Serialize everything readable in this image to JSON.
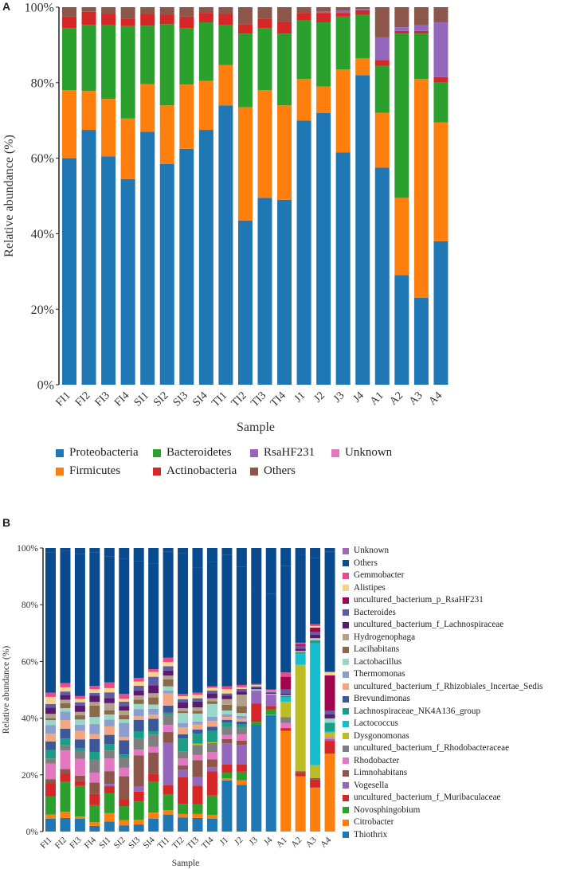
{
  "chart_data": [
    {
      "panel": "A",
      "type": "bar",
      "stacked": true,
      "title": "",
      "xlabel": "Sample",
      "ylabel": "Relative abundance (%)",
      "ylim": [
        0,
        100
      ],
      "yticks": [
        "0%",
        "20%",
        "40%",
        "60%",
        "80%",
        "100%"
      ],
      "legend_position": "bottom",
      "categories": [
        "FI1",
        "FI2",
        "FI3",
        "FI4",
        "SI1",
        "SI2",
        "SI3",
        "SI4",
        "TI1",
        "TI2",
        "TI3",
        "TI4",
        "J1",
        "J2",
        "J3",
        "J4",
        "A1",
        "A2",
        "A3",
        "A4"
      ],
      "series": [
        {
          "name": "Proteobacteria",
          "color": "#1f77b4",
          "values": [
            60,
            67.5,
            60.5,
            54.5,
            67,
            58.5,
            62.5,
            67.5,
            74,
            43.5,
            49.5,
            49,
            70,
            72,
            61.5,
            82,
            57.5,
            29,
            23,
            38
          ]
        },
        {
          "name": "Firmicutes",
          "color": "#ff7f0e",
          "values": [
            18,
            10.3,
            15.2,
            16,
            12.6,
            15.5,
            17,
            13,
            10.7,
            30,
            28.5,
            25,
            11,
            7,
            22,
            4.5,
            14.5,
            20.5,
            58,
            31.5
          ]
        },
        {
          "name": "Bacteroidetes",
          "color": "#2ca02c",
          "values": [
            16.5,
            17.5,
            19.5,
            24.5,
            15.5,
            21.5,
            15,
            15.5,
            10.5,
            19.5,
            16.5,
            19,
            15.5,
            17,
            14,
            11.5,
            12.5,
            43.5,
            12,
            10.5
          ]
        },
        {
          "name": "Actinobacteria",
          "color": "#d62728",
          "values": [
            3,
            3.5,
            3,
            2,
            3,
            2.5,
            3,
            2.5,
            3,
            2.5,
            2.5,
            3,
            2,
            2.5,
            1,
            1.2,
            1.5,
            0.7,
            0.7,
            1.5
          ]
        },
        {
          "name": "RsaHF231",
          "color": "#9467bd",
          "values": [
            0,
            0,
            0,
            0,
            0,
            0,
            0,
            0,
            0,
            0,
            0,
            0,
            0,
            0.3,
            0.5,
            0.3,
            6,
            1,
            1.5,
            14.5
          ]
        },
        {
          "name": "Unknown",
          "color": "#e377c2",
          "values": [
            0,
            0,
            0,
            0,
            0,
            0,
            0,
            0,
            0,
            0,
            0,
            0,
            0,
            0,
            0,
            0,
            0,
            0,
            0,
            0
          ]
        },
        {
          "name": "Others",
          "color": "#8c564b",
          "values": [
            2.5,
            1.2,
            1.8,
            3,
            1.9,
            2,
            2.5,
            1.5,
            1.8,
            4.5,
            3,
            4,
            1.5,
            1.2,
            1,
            0.5,
            8,
            5.3,
            4.8,
            4
          ]
        }
      ]
    },
    {
      "panel": "B",
      "type": "bar",
      "stacked": true,
      "title": "",
      "xlabel": "Sample",
      "ylabel": "Relative abundance (%)",
      "ylim": [
        0,
        100
      ],
      "yticks": [
        "0%",
        "20%",
        "40%",
        "60%",
        "80%",
        "100%"
      ],
      "legend_position": "right",
      "categories": [
        "FI1",
        "FI2",
        "FI3",
        "FI4",
        "SI1",
        "SI2",
        "SI3",
        "SI4",
        "TI1",
        "TI2",
        "TI3",
        "TI4",
        "J1",
        "J2",
        "J3",
        "J4",
        "A1",
        "A2",
        "A3",
        "A4"
      ],
      "series": [
        {
          "name": "Thiothrix",
          "color": "#1f77b4",
          "values": [
            4.5,
            4.8,
            4.5,
            2,
            3.5,
            2.2,
            2.5,
            4.5,
            6,
            5,
            4.8,
            4.5,
            18,
            16.5,
            37.5,
            41,
            0,
            0,
            0,
            0
          ]
        },
        {
          "name": "Citrobacter",
          "color": "#ff7f0e",
          "values": [
            1.5,
            2.2,
            0.8,
            1.3,
            3,
            1.8,
            1.6,
            2.2,
            1.5,
            1.2,
            1.4,
            1.4,
            0.8,
            1.6,
            0,
            0.3,
            35.5,
            19.5,
            15.5,
            27.5
          ]
        },
        {
          "name": "Novosphingobium",
          "color": "#2ca02c",
          "values": [
            6.5,
            10.5,
            10.8,
            6,
            7,
            5,
            6.5,
            11,
            5.5,
            3.6,
            3.5,
            6.8,
            2,
            3,
            1.2,
            1.8,
            0,
            0,
            0,
            0
          ]
        },
        {
          "name": "uncultured_bacterium_f_Muribaculaceae",
          "color": "#d62728",
          "values": [
            4.5,
            3,
            1.8,
            4,
            2.5,
            2.5,
            3.5,
            2.7,
            3.3,
            9.5,
            6.5,
            8.5,
            2.8,
            2.5,
            6.5,
            1.2,
            1,
            1.2,
            2.8,
            4.5
          ]
        },
        {
          "name": "Vogesella",
          "color": "#9467bd",
          "values": [
            0,
            0,
            0,
            0,
            0.8,
            0,
            1.8,
            0,
            15,
            2.5,
            3,
            1.5,
            7.5,
            7,
            4.5,
            4,
            0,
            0,
            0,
            0.6
          ]
        },
        {
          "name": "Limnohabitans",
          "color": "#8c564b",
          "values": [
            1.5,
            1.6,
            1.8,
            4,
            4.5,
            8,
            11,
            7.5,
            3.8,
            1.5,
            6,
            2.8,
            1.5,
            1.5,
            0,
            0,
            0,
            0.6,
            0.6,
            0
          ]
        },
        {
          "name": "Rhodobacter",
          "color": "#e377c2",
          "values": [
            5.5,
            6.5,
            6,
            3.5,
            4.5,
            3,
            2,
            2,
            2.5,
            2.5,
            1.8,
            2.5,
            1.5,
            2.2,
            0,
            0,
            1.8,
            0,
            0,
            0.8
          ]
        },
        {
          "name": "uncultured_bacterium_f_Rhodobacteraceae",
          "color": "#7f7f7f",
          "values": [
            1.8,
            2,
            2.8,
            4.5,
            2.8,
            3.5,
            4,
            4.3,
            3.5,
            2.5,
            3.5,
            3.2,
            2.8,
            2.5,
            0,
            0,
            2,
            0,
            0,
            0
          ]
        },
        {
          "name": "Dysgonomonas",
          "color": "#bcbd22",
          "values": [
            0,
            0,
            0,
            0,
            0,
            0,
            0,
            0,
            0,
            0,
            0.5,
            0.3,
            0,
            0,
            0,
            0,
            5.5,
            37.5,
            4.5,
            1.5
          ]
        },
        {
          "name": "Lactococcus",
          "color": "#17becf",
          "values": [
            0,
            0,
            0,
            0,
            0,
            0,
            0,
            0,
            0,
            0,
            0,
            0,
            0,
            0,
            0,
            0,
            1.5,
            4,
            43,
            0.5
          ]
        },
        {
          "name": "Lachnospiraceae_NK4A136_group",
          "color": "#1a9e85",
          "values": [
            3,
            2.2,
            1,
            2.8,
            2.2,
            1.2,
            2.5,
            1.2,
            0.8,
            4.5,
            3.5,
            4,
            1.5,
            1,
            0,
            0,
            0.5,
            0.5,
            1,
            3
          ]
        },
        {
          "name": "Brevundimonas",
          "color": "#3b5998",
          "values": [
            3,
            3.5,
            3,
            4.5,
            3.3,
            5,
            4,
            4.4,
            2.5,
            1.5,
            1.5,
            1.5,
            1,
            1,
            0,
            0,
            0,
            0,
            0,
            0
          ]
        },
        {
          "name": "uncultured_bacterium_f_Rhizobiales_Incertae_Sedis",
          "color": "#f4a582",
          "values": [
            2.7,
            3,
            3,
            1.8,
            3,
            1.2,
            1.3,
            1.5,
            4.3,
            2.5,
            1.8,
            2,
            1,
            1,
            0,
            0,
            0.3,
            0.4,
            0.4,
            0
          ]
        },
        {
          "name": "Thermomonas",
          "color": "#8c9ecb",
          "values": [
            3,
            3,
            2.2,
            3.5,
            2.4,
            5,
            2.5,
            2,
            1,
            1.5,
            1,
            1.5,
            1,
            1,
            0,
            0,
            0,
            0,
            0,
            0
          ]
        },
        {
          "name": "Lactobacillus",
          "color": "#98d8c8",
          "values": [
            1.8,
            1.2,
            1.8,
            2.5,
            1.8,
            1.2,
            1.8,
            1.5,
            1.5,
            3.5,
            2.8,
            4.5,
            1.3,
            1,
            0.5,
            0.3,
            0,
            0,
            0.4,
            1.5
          ]
        },
        {
          "name": "Lacihabitans",
          "color": "#8b6a4a",
          "values": [
            0.7,
            1.8,
            1.5,
            4,
            1.5,
            1.5,
            1.5,
            2.5,
            2.5,
            0.7,
            1,
            1,
            2,
            2.5,
            0,
            0,
            0,
            0,
            0,
            0
          ]
        },
        {
          "name": "Hydrogenophaga",
          "color": "#b3a08c",
          "values": [
            1.5,
            1.2,
            1.2,
            1.3,
            2.5,
            1.6,
            1.5,
            1.5,
            1.3,
            1,
            1.2,
            1,
            2,
            4,
            0,
            0,
            0,
            0,
            0,
            0
          ]
        },
        {
          "name": "uncultured_bacterium_f_Lachnospiraceae",
          "color": "#5b1a6e",
          "values": [
            2.2,
            1.7,
            2.2,
            2.2,
            1.8,
            1.6,
            1.8,
            2.8,
            1.8,
            2,
            2,
            1.7,
            1.2,
            1,
            0.5,
            0.3,
            0.5,
            0.8,
            1.2,
            1.5
          ]
        },
        {
          "name": "Bacteroides",
          "color": "#5e5ea8",
          "values": [
            1.3,
            1.2,
            1.2,
            1,
            2,
            1.5,
            1.6,
            3,
            1.5,
            1.2,
            1.2,
            1,
            0.8,
            1,
            0.5,
            0.5,
            1.5,
            1,
            1,
            1.2
          ]
        },
        {
          "name": "uncultured_bacterium_p_RsaHF231",
          "color": "#a0064e",
          "values": [
            0,
            0,
            0,
            0,
            0,
            0,
            0,
            0,
            0,
            0,
            0,
            0,
            0,
            0,
            0,
            0,
            4.5,
            0.5,
            1.5,
            12.5
          ]
        },
        {
          "name": "Alistipes",
          "color": "#f6d28a",
          "values": [
            2.5,
            1.5,
            1.2,
            1.3,
            1.5,
            1,
            1.5,
            1.7,
            1.5,
            1,
            1.2,
            1,
            1.5,
            0.6,
            0.5,
            0.3,
            0,
            0,
            0.6,
            1.2
          ]
        },
        {
          "name": "Gemmobacter",
          "color": "#e84a8a",
          "values": [
            1.5,
            1.5,
            1,
            1.2,
            2,
            1.8,
            1.3,
            1,
            1.5,
            0.8,
            0.8,
            0.5,
            1,
            0.8,
            0.4,
            0.4,
            1.5,
            0.6,
            0.6,
            0
          ]
        },
        {
          "name": "Others",
          "color": "#0a4a8f",
          "values": [
            49.5,
            46.5,
            50,
            47,
            44.5,
            47.5,
            41.2,
            37.2,
            37.5,
            49.7,
            44,
            44,
            46.5,
            41.8,
            34,
            33.8,
            37.5,
            31,
            23.5,
            42.5
          ]
        },
        {
          "name": "Unknown",
          "color": "#a466b5",
          "values": [
            0,
            0,
            0,
            0,
            0,
            0,
            0,
            0,
            0,
            0,
            0,
            0,
            0,
            0,
            0,
            0,
            0,
            0,
            0,
            0
          ]
        }
      ],
      "legend_order": [
        "Unknown",
        "Others",
        "Gemmobacter",
        "Alistipes",
        "uncultured_bacterium_p_RsaHF231",
        "Bacteroides",
        "uncultured_bacterium_f_Lachnospiraceae",
        "Hydrogenophaga",
        "Lacihabitans",
        "Lactobacillus",
        "Thermomonas",
        "uncultured_bacterium_f_Rhizobiales_Incertae_Sedis",
        "Brevundimonas",
        "Lachnospiraceae_NK4A136_group",
        "Lactococcus",
        "Dysgonomonas",
        "uncultured_bacterium_f_Rhodobacteraceae",
        "Rhodobacter",
        "Limnohabitans",
        "Vogesella",
        "uncultured_bacterium_f_Muribaculaceae",
        "Novosphingobium",
        "Citrobacter",
        "Thiothrix"
      ]
    }
  ],
  "panels": {
    "A": {
      "label": "A"
    },
    "B": {
      "label": "B"
    }
  }
}
